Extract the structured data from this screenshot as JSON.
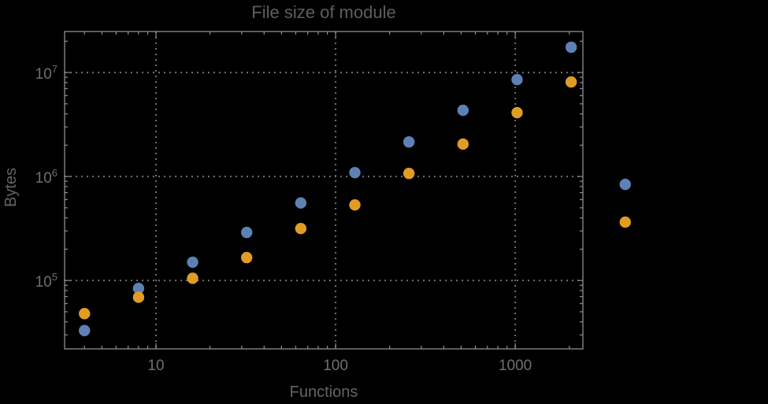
{
  "chart_data": {
    "type": "scatter",
    "title": "File size of module",
    "xlabel": "Functions",
    "ylabel": "Bytes",
    "x_scale": "log",
    "y_scale": "log",
    "xlim": [
      3.1,
      2380
    ],
    "ylim": [
      22000,
      24800000
    ],
    "x_ticks": [
      10,
      100,
      1000
    ],
    "y_ticks": [
      100000,
      1000000,
      10000000
    ],
    "x_tick_labels": [
      "10",
      "100",
      "1000"
    ],
    "y_tick_labels": [
      "10^5",
      "10^6",
      "10^7"
    ],
    "grid": {
      "style": "dotted",
      "x_lines": [
        10,
        100,
        1000
      ],
      "y_lines": [
        100000,
        1000000,
        10000000
      ]
    },
    "legend": null,
    "x": [
      4,
      8,
      16,
      32,
      64,
      128,
      256,
      512,
      1024,
      2048,
      4096
    ],
    "series": [
      {
        "name": "blue",
        "color": "#5e81b5",
        "values": [
          33000,
          84000,
          150000,
          290000,
          557000,
          1090000,
          2150000,
          4330000,
          8550000,
          17500000,
          840000
        ]
      },
      {
        "name": "orange",
        "color": "#e19c24",
        "values": [
          48000,
          69000,
          105000,
          166000,
          316000,
          533000,
          1070000,
          2050000,
          4110000,
          8110000,
          364000
        ]
      }
    ],
    "colors": {
      "background": "#000000",
      "frame": "#8f8f8f",
      "grid": "#6f6f6f",
      "tick_label": "#6f6f6f",
      "title": "#5e5e5e",
      "axis_label": "#646464"
    }
  }
}
